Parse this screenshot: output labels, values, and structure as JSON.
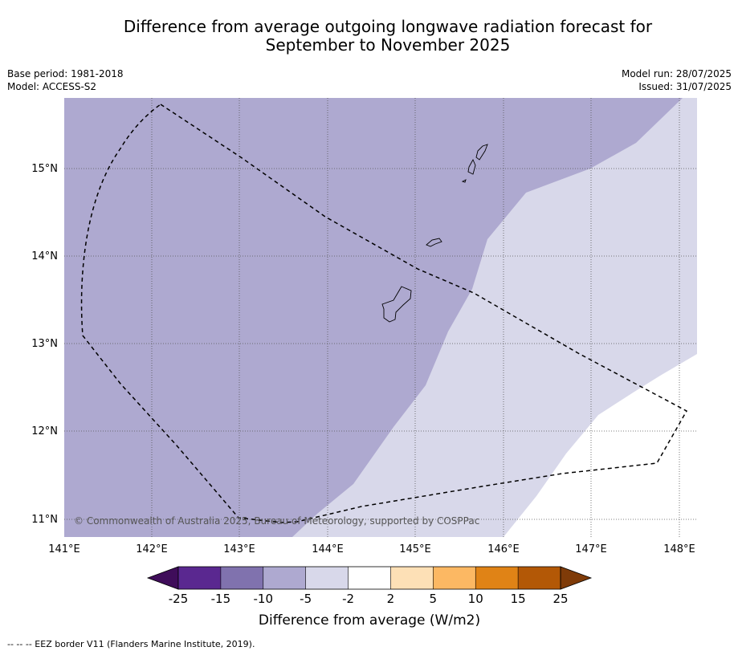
{
  "title_line1": "Difference from average outgoing longwave radiation forecast for",
  "title_line2": "September to November 2025",
  "meta_left": {
    "base_period": "Base period: 1981-2018",
    "model": "Model: ACCESS-S2"
  },
  "meta_right": {
    "model_run": "Model run: 28/07/2025",
    "issued": "Issued: 31/07/2025"
  },
  "copyright": "© Commonwealth of Australia 2025, Bureau of Meteorology, supported by COSPPac",
  "axes": {
    "lon_labels": [
      "141°E",
      "142°E",
      "143°E",
      "144°E",
      "145°E",
      "146°E",
      "147°E",
      "148°E"
    ],
    "lat_labels": [
      "15°N",
      "14°N",
      "13°N",
      "12°N",
      "11°N"
    ]
  },
  "colorbar": {
    "title": "Difference from average (W/m2)",
    "tick_labels": [
      "-25",
      "-15",
      "-10",
      "-5",
      "-2",
      "2",
      "5",
      "10",
      "15",
      "25"
    ],
    "colors": [
      "#3f0d5a",
      "#5a2890",
      "#8072ae",
      "#aea9d0",
      "#d8d8ea",
      "#ffffff",
      "#fde0b6",
      "#fcb863",
      "#e08316",
      "#b35806",
      "#7f3b08"
    ]
  },
  "footnote": "--  --  -- EEZ border V11 (Flanders Marine Institute, 2019)."
}
